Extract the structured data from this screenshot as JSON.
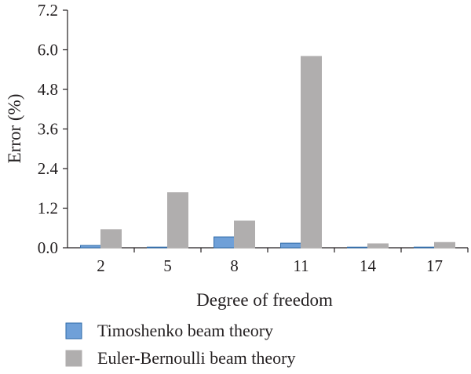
{
  "chart_data": {
    "type": "bar",
    "categories": [
      "2",
      "5",
      "8",
      "11",
      "14",
      "17"
    ],
    "series": [
      {
        "name": "Timoshenko beam theory",
        "values": [
          0.07,
          0.02,
          0.33,
          0.14,
          0.01,
          0.02
        ],
        "color": "#6fa0d8",
        "stroke": "#2e6aa8"
      },
      {
        "name": "Euler-Bernoulli beam theory",
        "values": [
          0.55,
          1.67,
          0.81,
          5.8,
          0.12,
          0.16
        ],
        "color": "#b0aeae",
        "stroke": "#b0aeae"
      }
    ],
    "xlabel": "Degree of freedom",
    "ylabel": "Error (%)",
    "ylim": [
      0,
      7.2
    ],
    "yticks": [
      "0.0",
      "1.2",
      "2.4",
      "3.6",
      "4.8",
      "6.0",
      "7.2"
    ],
    "grid": false,
    "legend_position": "bottom-left"
  }
}
